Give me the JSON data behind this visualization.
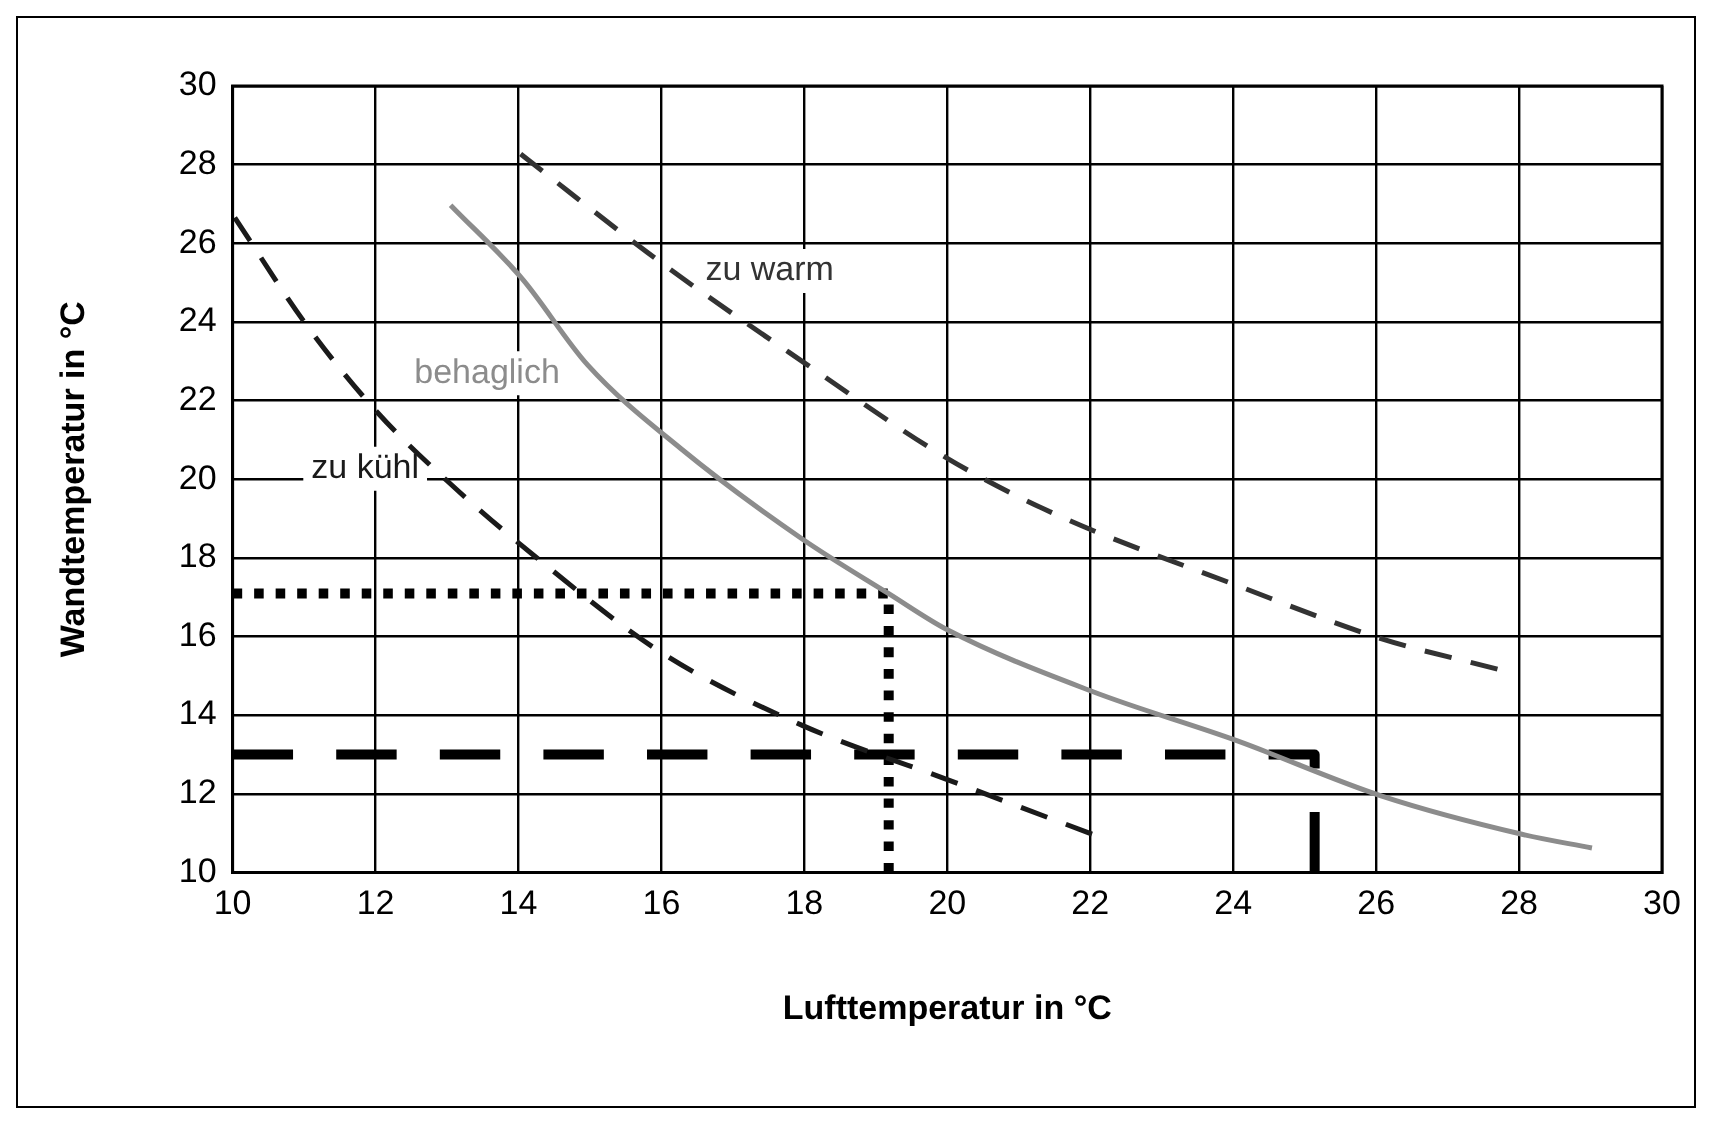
{
  "chart_data": {
    "type": "line",
    "xlabel": "Lufttemperatur in °C",
    "ylabel": "Wandtemperatur in °C",
    "xlim": [
      10,
      30
    ],
    "xticks": [
      10,
      12,
      14,
      16,
      18,
      20,
      22,
      24,
      26,
      28,
      30
    ],
    "ylim": [
      10,
      30
    ],
    "yticks": [
      10,
      12,
      14,
      16,
      18,
      20,
      22,
      24,
      26,
      28,
      30
    ],
    "grid": true,
    "legend": false,
    "marker": "none",
    "series": [
      {
        "name": "zu kühl",
        "color": "#1a1a1a",
        "line_style": "dashed",
        "x": [
          10.03,
          11.05,
          12.03,
          13,
          14.25,
          16,
          17.97,
          20,
          22.03
        ],
        "values": [
          26.65,
          23.88,
          21.69,
          19.96,
          18.01,
          15.59,
          13.74,
          12.36,
          10.97
        ]
      },
      {
        "name": "behaglich",
        "color": "#8c8c8c",
        "line_style": "solid",
        "x": [
          13.05,
          14.05,
          14.97,
          16.27,
          17.97,
          19.18,
          20,
          22.03,
          24.05,
          26.08,
          28.04,
          29.02
        ],
        "values": [
          26.97,
          25.1,
          22.9,
          20.78,
          18.48,
          17.09,
          16.17,
          14.6,
          13.35,
          11.94,
          10.97,
          10.62
        ]
      },
      {
        "name": "zu warm",
        "color": "#333333",
        "line_style": "dashed",
        "x": [
          14.03,
          16,
          18,
          20,
          21.5,
          24.05,
          26.08,
          27.7
        ],
        "values": [
          28.27,
          25.5,
          22.96,
          20.53,
          19.12,
          17.3,
          15.94,
          15.17
        ]
      },
      {
        "color": "#000000",
        "line_style": "dotted",
        "x": [
          10,
          19.18,
          19.18
        ],
        "values": [
          17.09,
          17.09,
          10
        ]
      },
      {
        "color": "#000000",
        "line_style": "dashed",
        "x": [
          10,
          25.14,
          25.14
        ],
        "values": [
          13.0,
          13.0,
          10
        ]
      }
    ]
  }
}
